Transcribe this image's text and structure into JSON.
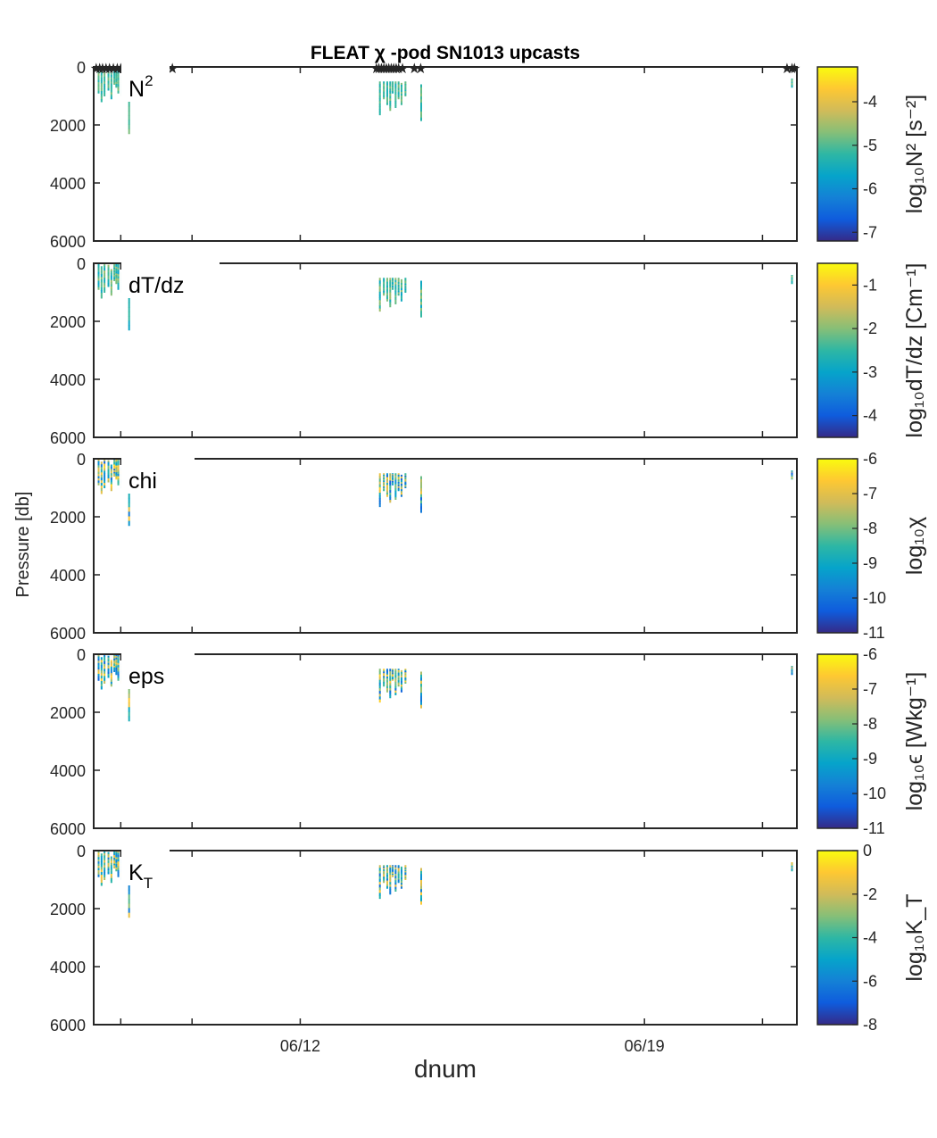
{
  "chart_data": {
    "type": "heatmap",
    "title": "FLEAT χ -pod SN1013 upcasts",
    "xlabel": "dnum",
    "ylabel": "Pressure [db]",
    "x_tick_labels": [
      "06/12",
      "06/19"
    ],
    "x_ticks_day_offset": [
      4.2,
      11.2
    ],
    "xlim_day_offset": [
      0,
      14.3
    ],
    "ylim": [
      6000,
      0
    ],
    "y_tick_labels": [
      "0",
      "2000",
      "4000",
      "6000"
    ],
    "y_ticks": [
      0,
      2000,
      4000,
      6000
    ],
    "colormap": [
      "#352a87",
      "#0f5cdd",
      "#1481d6",
      "#06a4ca",
      "#2eb7a4",
      "#87bf77",
      "#d1bb59",
      "#fec832",
      "#f9fb0e"
    ],
    "cast_markers_day_offset": [
      0.05,
      0.12,
      0.18,
      0.25,
      0.32,
      0.4,
      0.48,
      0.55,
      0.78,
      1.6,
      5.75,
      5.8,
      5.85,
      5.9,
      5.95,
      6.0,
      6.05,
      6.1,
      6.15,
      6.2,
      6.28,
      6.52,
      6.65,
      14.1,
      14.2,
      14.25
    ],
    "casts": [
      {
        "x": 0.1,
        "top": 0,
        "bottom": 900
      },
      {
        "x": 0.16,
        "top": 100,
        "bottom": 1200
      },
      {
        "x": 0.22,
        "top": 0,
        "bottom": 1000
      },
      {
        "x": 0.3,
        "top": 50,
        "bottom": 800
      },
      {
        "x": 0.36,
        "top": 200,
        "bottom": 1100
      },
      {
        "x": 0.42,
        "top": 0,
        "bottom": 600
      },
      {
        "x": 0.46,
        "top": 0,
        "bottom": 700
      },
      {
        "x": 0.5,
        "top": 0,
        "bottom": 900
      },
      {
        "x": 0.58,
        "top": 300,
        "bottom": 1000
      },
      {
        "x": 0.62,
        "top": 600,
        "bottom": 800
      },
      {
        "x": 0.72,
        "top": 400,
        "bottom": 2300
      },
      {
        "x": 5.82,
        "top": 500,
        "bottom": 1650
      },
      {
        "x": 5.9,
        "top": 500,
        "bottom": 1100
      },
      {
        "x": 5.97,
        "top": 500,
        "bottom": 1300
      },
      {
        "x": 6.03,
        "top": 500,
        "bottom": 1500
      },
      {
        "x": 6.08,
        "top": 500,
        "bottom": 900
      },
      {
        "x": 6.14,
        "top": 500,
        "bottom": 1400
      },
      {
        "x": 6.2,
        "top": 500,
        "bottom": 1100
      },
      {
        "x": 6.26,
        "top": 550,
        "bottom": 1300
      },
      {
        "x": 6.34,
        "top": 500,
        "bottom": 1000
      },
      {
        "x": 6.66,
        "top": 600,
        "bottom": 1850
      },
      {
        "x": 14.2,
        "top": 400,
        "bottom": 700
      }
    ],
    "panels": [
      {
        "label": "N",
        "label_sup": "2",
        "label_sub": "",
        "cb_label": "log₁₀N² [s⁻²]",
        "cb_ticks": [
          "-4",
          "-5",
          "-6",
          "-7"
        ],
        "cb_tick_values": [
          -4,
          -5,
          -6,
          -7
        ],
        "clim": [
          -7.2,
          -3.2
        ],
        "value_range": [
          -5.5,
          -4.7
        ]
      },
      {
        "label": "dT/dz",
        "label_sup": "",
        "label_sub": "",
        "cb_label": "log₁₀dT/dz [Cm⁻¹]",
        "cb_ticks": [
          "-1",
          "-2",
          "-3",
          "-4"
        ],
        "cb_tick_values": [
          -1,
          -2,
          -3,
          -4
        ],
        "clim": [
          -4.5,
          -0.5
        ],
        "value_range": [
          -3.0,
          -1.8
        ]
      },
      {
        "label": "chi",
        "label_sup": "",
        "label_sub": "",
        "cb_label": "log₁₀χ",
        "cb_ticks": [
          "-6",
          "-7",
          "-8",
          "-9",
          "-10",
          "-11"
        ],
        "cb_tick_values": [
          -6,
          -7,
          -8,
          -9,
          -10,
          -11
        ],
        "clim": [
          -11,
          -6
        ],
        "value_range": [
          -10.3,
          -6.4
        ]
      },
      {
        "label": "eps",
        "label_sup": "",
        "label_sub": "",
        "cb_label": "log₁₀ϵ [Wkg⁻¹]",
        "cb_ticks": [
          "-6",
          "-7",
          "-8",
          "-9",
          "-10",
          "-11"
        ],
        "cb_tick_values": [
          -6,
          -7,
          -8,
          -9,
          -10,
          -11
        ],
        "clim": [
          -11,
          -6
        ],
        "value_range": [
          -10.3,
          -6.4
        ]
      },
      {
        "label": "K",
        "label_sup": "",
        "label_sub": "T",
        "cb_label": "log₁₀K_T",
        "cb_ticks": [
          "0",
          "-2",
          "-4",
          "-6",
          "-8"
        ],
        "cb_tick_values": [
          0,
          -2,
          -4,
          -6,
          -8
        ],
        "clim": [
          -8,
          0
        ],
        "value_range": [
          -6.5,
          -1.0
        ]
      }
    ]
  }
}
